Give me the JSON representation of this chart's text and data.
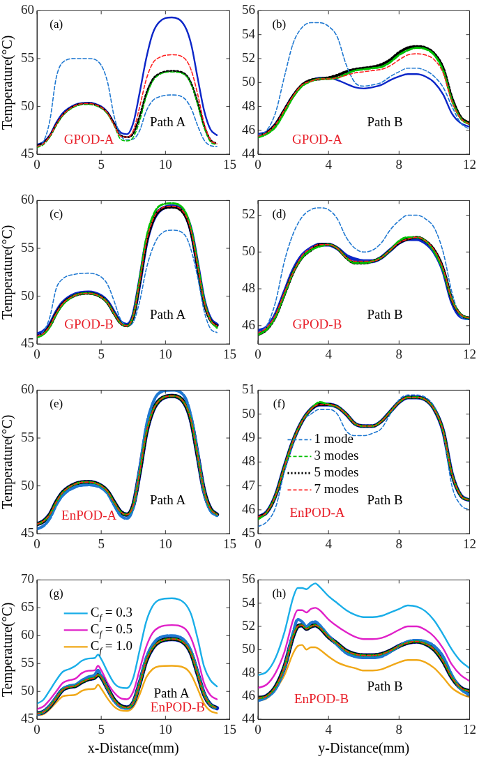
{
  "chart_data": [
    {
      "type": "line",
      "ylabel": "Temperature(°C)",
      "annotations": [
        "(a)",
        "GPOD-A",
        "Path A"
      ],
      "xlim": [
        0,
        15
      ],
      "xticks": [
        0,
        5,
        10,
        15
      ],
      "ylim": [
        45,
        60
      ],
      "yticks": [
        45,
        50,
        55,
        60
      ],
      "x": [
        0,
        0.5,
        1,
        1.5,
        2,
        3,
        4,
        5,
        5.5,
        6,
        6.5,
        7,
        7.5,
        8,
        8.5,
        9,
        9.5,
        10.5,
        11.5,
        12,
        12.5,
        13,
        13.5,
        14
      ],
      "series": [
        {
          "color": "#0b26c8",
          "line_style": "solid",
          "values": [
            46.0,
            46.3,
            47.0,
            48.3,
            49.3,
            50.2,
            50.4,
            50.0,
            49.4,
            48.3,
            47.3,
            47.1,
            48.3,
            51.5,
            55.0,
            57.6,
            58.8,
            59.3,
            58.4,
            56.5,
            53.0,
            49.6,
            47.6,
            47.0
          ]
        },
        {
          "color": "#1f78d1",
          "line_style": "dashed",
          "values": [
            45.8,
            46.3,
            48.5,
            53.0,
            54.6,
            55.0,
            55.0,
            54.3,
            52.5,
            49.0,
            47.0,
            46.5,
            46.6,
            47.5,
            49.5,
            50.6,
            51.0,
            51.2,
            50.8,
            49.8,
            48.0,
            46.5,
            45.9,
            45.8
          ]
        },
        {
          "color": "#00c000",
          "line_style": "dashed",
          "values": [
            45.7,
            46.0,
            46.8,
            48.0,
            49.0,
            50.0,
            50.2,
            49.8,
            49.2,
            48.0,
            46.6,
            46.4,
            46.8,
            48.5,
            51.0,
            52.6,
            53.3,
            53.6,
            53.3,
            52.3,
            50.2,
            47.8,
            46.3,
            46.0
          ]
        },
        {
          "color": "#000000",
          "line_style": "dotted",
          "values": [
            45.9,
            46.2,
            46.9,
            48.1,
            49.1,
            50.1,
            50.3,
            49.9,
            49.3,
            48.2,
            47.0,
            46.8,
            47.2,
            49.0,
            51.3,
            52.8,
            53.4,
            53.7,
            53.4,
            52.4,
            50.4,
            48.0,
            46.5,
            46.1
          ]
        },
        {
          "color": "#ff2020",
          "line_style": "dashed",
          "values": [
            45.8,
            46.1,
            46.9,
            48.1,
            49.1,
            50.1,
            50.3,
            49.9,
            49.3,
            48.1,
            46.9,
            46.8,
            47.5,
            50.0,
            52.8,
            54.5,
            55.1,
            55.4,
            55.0,
            53.8,
            51.3,
            48.3,
            46.5,
            46.1
          ]
        }
      ]
    },
    {
      "type": "line",
      "annotations": [
        "(b)",
        "GPOD-A",
        "Path B"
      ],
      "xlim": [
        0,
        12
      ],
      "xticks": [
        0,
        4,
        8,
        12
      ],
      "ylim": [
        44,
        56
      ],
      "yticks": [
        44,
        46,
        48,
        50,
        52,
        54,
        56
      ],
      "x": [
        0,
        0.5,
        1,
        1.5,
        2,
        2.5,
        3,
        3.5,
        4,
        4.5,
        5,
        5.5,
        6,
        6.5,
        7,
        7.5,
        8,
        8.5,
        9,
        9.5,
        10,
        10.5,
        11,
        11.5,
        12
      ],
      "series": [
        {
          "color": "#0b26c8",
          "line_style": "solid",
          "values": [
            45.7,
            45.9,
            46.6,
            47.8,
            49.0,
            49.8,
            50.2,
            50.4,
            50.4,
            50.2,
            49.9,
            49.6,
            49.5,
            49.6,
            49.8,
            50.2,
            50.5,
            50.7,
            50.7,
            50.5,
            50.0,
            49.0,
            47.4,
            46.6,
            46.3
          ]
        },
        {
          "color": "#1f78d1",
          "line_style": "dashed",
          "values": [
            45.6,
            46.0,
            47.5,
            50.5,
            53.3,
            54.6,
            55.0,
            55.0,
            54.7,
            53.8,
            51.5,
            50.0,
            49.7,
            49.8,
            50.0,
            50.5,
            50.9,
            51.2,
            51.2,
            51.0,
            50.5,
            49.6,
            48.0,
            46.6,
            46.1
          ]
        },
        {
          "color": "#00c000",
          "line_style": "dashed",
          "values": [
            45.4,
            45.7,
            46.3,
            47.5,
            48.8,
            49.7,
            50.1,
            50.3,
            50.3,
            50.4,
            50.7,
            51.0,
            51.1,
            51.2,
            51.3,
            51.7,
            52.3,
            52.7,
            52.9,
            52.8,
            52.3,
            51.0,
            48.5,
            47.0,
            46.5
          ]
        },
        {
          "color": "#000000",
          "line_style": "dotted",
          "values": [
            45.5,
            45.8,
            46.5,
            47.7,
            48.9,
            49.8,
            50.2,
            50.3,
            50.4,
            50.6,
            50.9,
            51.1,
            51.2,
            51.3,
            51.5,
            51.9,
            52.5,
            52.9,
            53.0,
            52.9,
            52.4,
            51.2,
            48.7,
            47.1,
            46.6
          ]
        },
        {
          "color": "#ff2020",
          "line_style": "dashed",
          "values": [
            45.5,
            45.8,
            46.5,
            47.7,
            48.9,
            49.8,
            50.1,
            50.3,
            50.3,
            50.4,
            50.6,
            50.8,
            50.9,
            51.0,
            51.1,
            51.4,
            51.9,
            52.3,
            52.4,
            52.3,
            51.9,
            50.8,
            48.4,
            47.0,
            46.5
          ]
        }
      ]
    },
    {
      "type": "line",
      "ylabel": "Temperature(°C)",
      "annotations": [
        "(c)",
        "GPOD-B",
        "Path A"
      ],
      "xlim": [
        0,
        15
      ],
      "xticks": [
        0,
        5,
        10,
        15
      ],
      "ylim": [
        45,
        60
      ],
      "yticks": [
        45,
        50,
        55,
        60
      ],
      "x": [
        0,
        0.5,
        1,
        1.5,
        2,
        3,
        4,
        5,
        5.5,
        6,
        6.5,
        7,
        7.5,
        8,
        8.5,
        9,
        9.5,
        10.5,
        11.5,
        12,
        12.5,
        13,
        13.5,
        14
      ],
      "series": [
        {
          "color": "#0b26c8",
          "line_style": "solid",
          "values": [
            46.0,
            46.3,
            47.0,
            48.3,
            49.3,
            50.2,
            50.4,
            50.0,
            49.4,
            48.3,
            47.3,
            47.0,
            48.0,
            51.5,
            55.5,
            57.8,
            58.9,
            59.4,
            58.6,
            56.8,
            53.2,
            49.5,
            47.6,
            47.0
          ]
        },
        {
          "color": "#1f78d1",
          "line_style": "dashed",
          "values": [
            45.8,
            46.3,
            47.8,
            50.8,
            51.8,
            52.3,
            52.4,
            52.0,
            51.2,
            49.5,
            47.6,
            46.9,
            47.3,
            49.5,
            52.8,
            55.0,
            56.3,
            56.9,
            56.4,
            54.8,
            52.0,
            48.5,
            46.6,
            46.2
          ]
        },
        {
          "color": "#00c000",
          "line_style": "dashed",
          "values": [
            45.7,
            46.0,
            46.8,
            48.1,
            49.1,
            50.1,
            50.3,
            49.9,
            49.3,
            48.2,
            47.2,
            46.9,
            48.0,
            51.8,
            56.0,
            58.3,
            59.4,
            59.7,
            58.9,
            57.0,
            53.4,
            49.6,
            47.5,
            46.7
          ]
        },
        {
          "color": "#000000",
          "line_style": "dotted",
          "values": [
            45.8,
            46.1,
            46.9,
            48.2,
            49.2,
            50.1,
            50.3,
            49.9,
            49.3,
            48.2,
            47.2,
            46.9,
            47.9,
            51.5,
            55.5,
            57.8,
            58.9,
            59.3,
            58.5,
            56.7,
            53.1,
            49.4,
            47.5,
            46.9
          ]
        },
        {
          "color": "#ff2020",
          "line_style": "dashed",
          "values": [
            45.8,
            46.1,
            46.9,
            48.2,
            49.2,
            50.1,
            50.3,
            49.9,
            49.3,
            48.2,
            47.2,
            46.9,
            48.0,
            51.6,
            55.6,
            57.9,
            59.0,
            59.4,
            58.6,
            56.8,
            53.2,
            49.5,
            47.5,
            46.9
          ]
        }
      ]
    },
    {
      "type": "line",
      "annotations": [
        "(d)",
        "GPOD-B",
        "Path B"
      ],
      "xlim": [
        0,
        12
      ],
      "xticks": [
        0,
        4,
        8,
        12
      ],
      "ylim": [
        45,
        52.8
      ],
      "yticks": [
        46,
        48,
        50,
        52
      ],
      "x": [
        0,
        0.5,
        1,
        1.5,
        2,
        2.5,
        3,
        3.5,
        4,
        4.5,
        5,
        5.5,
        6,
        6.5,
        7,
        7.5,
        8,
        8.5,
        9,
        9.5,
        10,
        10.5,
        11,
        11.5,
        12
      ],
      "series": [
        {
          "color": "#0b26c8",
          "line_style": "solid",
          "values": [
            45.7,
            45.9,
            46.6,
            47.8,
            49.0,
            49.8,
            50.2,
            50.4,
            50.4,
            50.2,
            49.8,
            49.6,
            49.5,
            49.5,
            49.7,
            50.1,
            50.5,
            50.7,
            50.7,
            50.5,
            50.0,
            49.0,
            47.3,
            46.5,
            46.4
          ]
        },
        {
          "color": "#1f78d1",
          "line_style": "dashed",
          "values": [
            45.6,
            46.0,
            47.3,
            49.5,
            51.0,
            51.9,
            52.3,
            52.4,
            52.3,
            51.8,
            50.8,
            50.2,
            50.0,
            50.1,
            50.5,
            51.2,
            51.7,
            52.0,
            52.0,
            51.8,
            51.3,
            50.0,
            47.8,
            46.5,
            46.3
          ]
        },
        {
          "color": "#00c000",
          "line_style": "dashed",
          "values": [
            45.5,
            45.8,
            46.5,
            47.7,
            48.9,
            49.7,
            50.1,
            50.3,
            50.4,
            50.2,
            49.7,
            49.4,
            49.4,
            49.5,
            49.7,
            50.1,
            50.6,
            50.8,
            50.8,
            50.6,
            50.0,
            49.0,
            47.4,
            46.6,
            46.4
          ]
        },
        {
          "color": "#000000",
          "line_style": "dotted",
          "values": [
            45.5,
            45.8,
            46.5,
            47.7,
            48.9,
            49.7,
            50.1,
            50.4,
            50.4,
            50.2,
            49.7,
            49.4,
            49.4,
            49.5,
            49.7,
            50.1,
            50.5,
            50.7,
            50.8,
            50.6,
            50.1,
            49.1,
            47.4,
            46.6,
            46.4
          ]
        },
        {
          "color": "#ff2020",
          "line_style": "dashed",
          "values": [
            45.6,
            45.9,
            46.6,
            47.8,
            48.9,
            49.8,
            50.2,
            50.4,
            50.4,
            50.2,
            49.7,
            49.5,
            49.5,
            49.5,
            49.7,
            50.1,
            50.5,
            50.7,
            50.8,
            50.6,
            50.1,
            49.1,
            47.4,
            46.6,
            46.4
          ]
        }
      ]
    },
    {
      "type": "line",
      "ylabel": "Temperature(°C)",
      "annotations": [
        "(e)",
        "EnPOD-A",
        "Path A"
      ],
      "xlim": [
        0,
        15
      ],
      "xticks": [
        0,
        5,
        10,
        15
      ],
      "ylim": [
        45,
        60
      ],
      "yticks": [
        45,
        50,
        55,
        60
      ],
      "x": [
        0,
        0.5,
        1,
        1.5,
        2,
        3,
        4,
        5,
        5.5,
        6,
        6.5,
        7,
        7.5,
        8,
        8.5,
        9,
        9.5,
        10.5,
        11.5,
        12,
        12.5,
        13,
        13.5,
        14
      ],
      "series": [
        {
          "color": "#0b26c8",
          "line_style": "solid",
          "values": [
            46.0,
            46.3,
            47.0,
            48.3,
            49.3,
            50.2,
            50.4,
            50.0,
            49.4,
            48.3,
            47.3,
            47.0,
            48.0,
            51.5,
            55.5,
            57.8,
            58.9,
            59.4,
            58.6,
            56.8,
            53.2,
            49.5,
            47.6,
            47.0
          ]
        },
        {
          "color": "#1f78d1",
          "line_style": "dashed",
          "values": [
            45.5,
            45.8,
            46.6,
            48.0,
            49.0,
            49.9,
            50.1,
            49.8,
            49.2,
            48.0,
            46.9,
            46.6,
            47.8,
            51.8,
            56.2,
            58.6,
            59.7,
            60.0,
            59.3,
            57.2,
            53.4,
            49.4,
            47.4,
            46.9
          ]
        },
        {
          "color": "#00c000",
          "line_style": "dashed",
          "values": [
            46.0,
            46.3,
            47.0,
            48.3,
            49.3,
            50.2,
            50.4,
            50.0,
            49.4,
            48.3,
            47.3,
            47.0,
            48.0,
            51.5,
            55.5,
            57.8,
            58.9,
            59.4,
            58.6,
            56.8,
            53.2,
            49.5,
            47.6,
            47.0
          ]
        },
        {
          "color": "#000000",
          "line_style": "dotted",
          "values": [
            46.0,
            46.3,
            47.0,
            48.3,
            49.3,
            50.2,
            50.4,
            50.0,
            49.4,
            48.3,
            47.3,
            47.0,
            48.0,
            51.5,
            55.5,
            57.8,
            58.9,
            59.4,
            58.6,
            56.8,
            53.2,
            49.5,
            47.6,
            47.0
          ]
        },
        {
          "color": "#ff2020",
          "line_style": "dashed",
          "values": [
            46.0,
            46.3,
            47.0,
            48.3,
            49.3,
            50.2,
            50.4,
            50.0,
            49.4,
            48.3,
            47.3,
            47.0,
            48.0,
            51.5,
            55.5,
            57.8,
            58.9,
            59.4,
            58.6,
            56.8,
            53.2,
            49.5,
            47.6,
            47.0
          ]
        }
      ]
    },
    {
      "type": "line",
      "annotations": [
        "(f)",
        "EnPOD-A",
        "Path B"
      ],
      "legend": "left",
      "xlim": [
        0,
        12
      ],
      "xticks": [
        0,
        4,
        8,
        12
      ],
      "ylim": [
        45,
        51
      ],
      "yticks": [
        45,
        46,
        47,
        48,
        49,
        50,
        51
      ],
      "x": [
        0,
        0.5,
        1,
        1.5,
        2,
        2.5,
        3,
        3.5,
        4,
        4.5,
        5,
        5.5,
        6,
        6.5,
        7,
        7.5,
        8,
        8.5,
        9,
        9.5,
        10,
        10.5,
        11,
        11.5,
        12
      ],
      "series": [
        {
          "color": "#0b26c8",
          "line_style": "solid",
          "values": [
            45.7,
            45.9,
            46.6,
            47.8,
            48.9,
            49.7,
            50.2,
            50.4,
            50.4,
            50.3,
            50.0,
            49.6,
            49.5,
            49.5,
            49.7,
            50.1,
            50.5,
            50.7,
            50.7,
            50.6,
            50.2,
            49.3,
            47.5,
            46.6,
            46.4
          ]
        },
        {
          "name": "1 mode",
          "color": "#1f78d1",
          "line_style": "dashed",
          "values": [
            45.3,
            45.5,
            46.1,
            47.6,
            48.8,
            49.7,
            50.0,
            50.2,
            50.2,
            50.0,
            49.3,
            49.1,
            49.1,
            49.2,
            49.4,
            50.0,
            50.6,
            50.8,
            50.8,
            50.7,
            50.3,
            49.2,
            47.0,
            46.2,
            46.0
          ]
        },
        {
          "name": "3 modes",
          "color": "#00c000",
          "line_style": "dashed",
          "values": [
            45.6,
            45.9,
            46.6,
            47.8,
            48.9,
            49.7,
            50.2,
            50.5,
            50.4,
            50.3,
            50.0,
            49.6,
            49.5,
            49.5,
            49.7,
            50.1,
            50.5,
            50.7,
            50.7,
            50.6,
            50.2,
            49.3,
            47.5,
            46.6,
            46.4
          ]
        },
        {
          "name": "5 modes",
          "color": "#000000",
          "line_style": "dotted",
          "values": [
            45.7,
            45.9,
            46.6,
            47.8,
            48.9,
            49.7,
            50.2,
            50.4,
            50.4,
            50.3,
            50.0,
            49.6,
            49.5,
            49.5,
            49.7,
            50.1,
            50.5,
            50.7,
            50.7,
            50.6,
            50.2,
            49.3,
            47.5,
            46.6,
            46.4
          ]
        },
        {
          "name": "7 modes",
          "color": "#ff2020",
          "line_style": "dashed",
          "values": [
            45.7,
            45.9,
            46.6,
            47.8,
            48.9,
            49.7,
            50.2,
            50.4,
            50.4,
            50.3,
            50.0,
            49.6,
            49.5,
            49.5,
            49.7,
            50.1,
            50.5,
            50.7,
            50.7,
            50.6,
            50.2,
            49.3,
            47.5,
            46.6,
            46.4
          ]
        }
      ]
    },
    {
      "type": "line",
      "ylabel": "Temperature(°C)",
      "xlabel": "x-Distance(mm)",
      "annotations": [
        "(g)",
        "EnPOD-B",
        "Path A"
      ],
      "legend": "top left",
      "xlim": [
        0,
        15
      ],
      "xticks": [
        0,
        5,
        10,
        15
      ],
      "ylim": [
        45,
        70
      ],
      "yticks": [
        45,
        50,
        55,
        60,
        65,
        70
      ],
      "x": [
        0,
        0.5,
        1,
        1.5,
        2,
        2.5,
        3,
        3.5,
        4,
        4.5,
        4.75,
        5,
        5.5,
        6,
        6.5,
        7,
        7.5,
        8,
        8.5,
        9,
        9.5,
        10.5,
        11.5,
        12,
        12.5,
        13,
        13.5,
        14
      ],
      "series": [
        {
          "name": "C$_{f}$ = 0.3",
          "color": "#1aaee8",
          "line_style": "solid",
          "values": [
            47.8,
            48.5,
            50.2,
            52.0,
            53.5,
            54.0,
            54.6,
            55.5,
            55.9,
            56.0,
            56.6,
            55.8,
            53.5,
            51.5,
            50.7,
            50.6,
            52.5,
            57.5,
            62.5,
            65.3,
            66.4,
            66.7,
            65.8,
            63.8,
            59.5,
            54.5,
            52.0,
            50.9
          ]
        },
        {
          "name": "C$_{f}$ = 0.5",
          "color": "#e020c8",
          "line_style": "solid",
          "values": [
            46.8,
            47.3,
            48.5,
            50.0,
            51.5,
            52.0,
            52.3,
            53.3,
            53.7,
            53.8,
            54.6,
            53.8,
            51.5,
            49.8,
            48.8,
            48.6,
            50.0,
            54.0,
            58.0,
            60.5,
            61.5,
            61.9,
            61.3,
            59.5,
            56.0,
            51.5,
            49.3,
            48.6
          ]
        },
        {
          "name": "C$_{f}$ = 1.0",
          "color": "#f0a818",
          "line_style": "solid",
          "values": [
            45.7,
            45.9,
            46.8,
            48.0,
            49.1,
            49.3,
            49.4,
            50.1,
            50.4,
            50.5,
            51.2,
            50.5,
            48.7,
            47.3,
            46.6,
            46.5,
            47.2,
            49.5,
            52.5,
            54.0,
            54.5,
            54.6,
            54.2,
            53.0,
            50.5,
            47.8,
            46.5,
            46.1
          ]
        },
        {
          "color": "#0b26c8",
          "line_style": "solid",
          "values": [
            46.0,
            46.3,
            47.3,
            48.8,
            50.3,
            50.8,
            51.0,
            51.7,
            52.2,
            52.5,
            53.0,
            52.6,
            50.5,
            48.5,
            47.4,
            47.1,
            48.0,
            51.5,
            55.5,
            57.8,
            58.9,
            59.4,
            58.6,
            56.8,
            53.2,
            49.5,
            47.6,
            47.0
          ]
        },
        {
          "color": "#1f78d1",
          "line_style": "dashed",
          "values": [
            45.9,
            46.3,
            47.4,
            48.9,
            50.4,
            51.0,
            51.2,
            52.0,
            52.6,
            53.0,
            53.8,
            52.8,
            50.5,
            48.3,
            47.2,
            47.0,
            48.0,
            51.6,
            56.0,
            58.4,
            59.6,
            60.0,
            59.1,
            57.2,
            53.4,
            49.6,
            47.6,
            46.9
          ]
        },
        {
          "color": "#00c000",
          "line_style": "dashed",
          "values": [
            46.0,
            46.3,
            47.3,
            48.8,
            50.3,
            50.8,
            51.0,
            51.7,
            52.2,
            52.5,
            53.0,
            52.6,
            50.5,
            48.5,
            47.4,
            47.1,
            48.0,
            51.5,
            55.5,
            57.8,
            58.9,
            59.4,
            58.6,
            56.8,
            53.2,
            49.5,
            47.6,
            47.0
          ]
        },
        {
          "color": "#000000",
          "line_style": "dotted",
          "values": [
            46.0,
            46.3,
            47.3,
            48.8,
            50.3,
            50.8,
            51.0,
            51.7,
            52.2,
            52.5,
            53.0,
            52.6,
            50.5,
            48.5,
            47.4,
            47.1,
            48.0,
            51.5,
            55.5,
            57.8,
            58.9,
            59.4,
            58.6,
            56.8,
            53.2,
            49.5,
            47.6,
            47.0
          ]
        },
        {
          "color": "#ff2020",
          "line_style": "dashed",
          "values": [
            46.0,
            46.3,
            47.3,
            48.8,
            50.3,
            50.8,
            51.0,
            51.7,
            52.2,
            52.5,
            53.0,
            52.6,
            50.5,
            48.5,
            47.4,
            47.1,
            48.0,
            51.5,
            55.5,
            57.8,
            58.9,
            59.4,
            58.6,
            56.8,
            53.2,
            49.5,
            47.6,
            47.0
          ]
        }
      ]
    },
    {
      "type": "line",
      "xlabel": "y-Distance(mm)",
      "annotations": [
        "(h)",
        "EnPOD-B",
        "Path B"
      ],
      "xlim": [
        0,
        12
      ],
      "xticks": [
        0,
        4,
        8,
        12
      ],
      "ylim": [
        44,
        56
      ],
      "yticks": [
        44,
        46,
        48,
        50,
        52,
        54,
        56
      ],
      "x": [
        0,
        0.5,
        1,
        1.5,
        2,
        2.25,
        2.5,
        2.75,
        3,
        3.25,
        3.5,
        4,
        4.5,
        5,
        5.5,
        6,
        6.5,
        7,
        7.5,
        8,
        8.5,
        9,
        9.5,
        10,
        10.5,
        11,
        11.5,
        12
      ],
      "series": [
        {
          "color": "#1aaee8",
          "line_style": "solid",
          "values": [
            47.8,
            48.1,
            49.3,
            51.5,
            54.5,
            55.3,
            55.3,
            55.2,
            55.5,
            55.7,
            55.4,
            54.6,
            54.0,
            53.4,
            53.0,
            52.8,
            52.8,
            52.9,
            53.2,
            53.5,
            53.8,
            53.7,
            53.3,
            52.5,
            51.3,
            50.0,
            49.0,
            48.4
          ]
        },
        {
          "color": "#e020c8",
          "line_style": "solid",
          "values": [
            46.7,
            47.0,
            48.0,
            49.8,
            52.6,
            53.4,
            53.4,
            53.2,
            53.5,
            53.6,
            53.4,
            52.6,
            52.0,
            51.5,
            51.1,
            50.9,
            50.9,
            51.0,
            51.3,
            51.7,
            52.0,
            52.0,
            51.7,
            51.1,
            50.1,
            48.7,
            47.8,
            47.3
          ]
        },
        {
          "color": "#f0a818",
          "line_style": "solid",
          "values": [
            45.6,
            45.8,
            46.6,
            47.8,
            49.7,
            50.3,
            50.4,
            50.0,
            50.2,
            50.2,
            50.0,
            49.4,
            48.9,
            48.6,
            48.4,
            48.2,
            48.2,
            48.3,
            48.6,
            48.9,
            49.1,
            49.1,
            48.9,
            48.4,
            47.6,
            46.7,
            46.2,
            45.9
          ]
        },
        {
          "color": "#0b26c8",
          "line_style": "solid",
          "values": [
            45.8,
            46.0,
            46.8,
            48.5,
            51.2,
            52.0,
            52.1,
            51.8,
            52.0,
            52.1,
            51.9,
            51.1,
            50.5,
            49.9,
            49.6,
            49.5,
            49.5,
            49.6,
            49.9,
            50.3,
            50.6,
            50.7,
            50.5,
            50.0,
            49.0,
            47.6,
            46.7,
            46.4
          ]
        },
        {
          "color": "#1f78d1",
          "line_style": "dashed",
          "values": [
            45.6,
            45.9,
            46.6,
            48.4,
            51.5,
            52.6,
            52.4,
            52.0,
            52.3,
            52.4,
            52.1,
            51.2,
            50.4,
            49.7,
            49.4,
            49.3,
            49.3,
            49.4,
            49.8,
            50.3,
            50.7,
            50.8,
            50.7,
            50.3,
            49.4,
            47.8,
            46.6,
            46.1
          ]
        },
        {
          "color": "#00c000",
          "line_style": "dashed",
          "values": [
            45.8,
            46.0,
            46.8,
            48.5,
            51.2,
            52.0,
            52.1,
            51.8,
            52.0,
            52.1,
            51.9,
            51.1,
            50.5,
            49.9,
            49.6,
            49.5,
            49.5,
            49.6,
            49.9,
            50.3,
            50.6,
            50.7,
            50.5,
            50.0,
            49.0,
            47.6,
            46.7,
            46.4
          ]
        },
        {
          "color": "#000000",
          "line_style": "dotted",
          "values": [
            45.8,
            46.0,
            46.8,
            48.5,
            51.2,
            52.0,
            52.1,
            51.8,
            52.0,
            52.1,
            51.9,
            51.1,
            50.5,
            49.9,
            49.6,
            49.5,
            49.5,
            49.6,
            49.9,
            50.3,
            50.6,
            50.7,
            50.5,
            50.0,
            49.0,
            47.6,
            46.7,
            46.4
          ]
        },
        {
          "color": "#ff2020",
          "line_style": "dashed",
          "values": [
            45.8,
            46.0,
            46.8,
            48.5,
            51.2,
            52.0,
            52.1,
            51.8,
            52.0,
            52.1,
            51.9,
            51.1,
            50.5,
            49.9,
            49.6,
            49.5,
            49.5,
            49.6,
            49.9,
            50.3,
            50.6,
            50.7,
            50.5,
            50.0,
            49.0,
            47.6,
            46.7,
            46.4
          ]
        }
      ]
    }
  ]
}
